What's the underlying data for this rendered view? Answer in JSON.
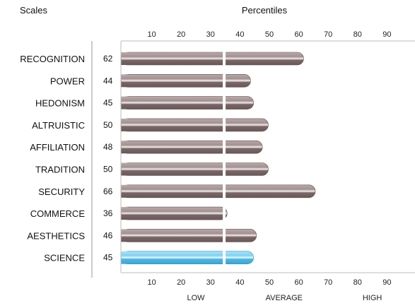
{
  "header": {
    "scales_label": "Scales",
    "percentiles_label": "Percentiles"
  },
  "chart_data": {
    "type": "bar",
    "orientation": "horizontal",
    "categories": [
      "RECOGNITION",
      "POWER",
      "HEDONISM",
      "ALTRUISTIC",
      "AFFILIATION",
      "TRADITION",
      "SECURITY",
      "COMMERCE",
      "AESTHETICS",
      "SCIENCE"
    ],
    "values": [
      62,
      44,
      45,
      50,
      48,
      50,
      66,
      36,
      46,
      45
    ],
    "highlighted_category": "SCIENCE",
    "xlim": [
      0,
      100
    ],
    "x_ticks": [
      10,
      20,
      30,
      40,
      50,
      60,
      70,
      80,
      90
    ],
    "grid": false,
    "bands": [
      "LOW",
      "AVERAGE",
      "HIGH"
    ],
    "colors": {
      "bar": "#8a7878",
      "bar_highlight": "#5bbfe6",
      "divider": "#ffffff",
      "axis": "#9a9a9a"
    }
  }
}
